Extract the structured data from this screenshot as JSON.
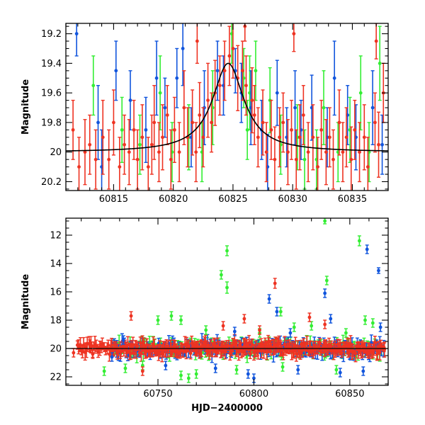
{
  "colors": {
    "green": "#33ee33",
    "blue": "#1155dd",
    "red": "#ee3322",
    "model": "#000000"
  },
  "chart_data": [
    {
      "type": "scatter",
      "panel": "top",
      "xlabel": "",
      "ylabel": "Magnitude",
      "xlim": [
        60811,
        60838
      ],
      "ylim": [
        20.26,
        19.13
      ],
      "y_inverted": true,
      "xticks": [
        60815,
        60820,
        60825,
        60830,
        60835
      ],
      "xtick_labels": [
        "60815",
        "60820",
        "60825",
        "60830",
        "60835"
      ],
      "yticks": [
        19.2,
        19.4,
        19.6,
        19.8,
        20.0,
        20.2
      ],
      "ytick_labels": [
        "19.2",
        "19.4",
        "19.6",
        "19.8",
        "20",
        "20.2"
      ],
      "model_curve": {
        "baseline": 20.0,
        "peak_x": 60824.6,
        "peak_y": 19.4,
        "timescale": 1.6
      },
      "series": [
        {
          "color": "green",
          "points": [
            [
              60813.3,
              19.55,
              0.2
            ],
            [
              60815.7,
              19.85,
              0.22
            ],
            [
              60817.2,
              19.95,
              0.2
            ],
            [
              60818.9,
              19.6,
              0.25
            ],
            [
              60819.9,
              20.0,
              0.2
            ],
            [
              60821.3,
              19.9,
              0.22
            ],
            [
              60822.4,
              20.0,
              0.2
            ],
            [
              60823.3,
              19.7,
              0.25
            ],
            [
              60825.9,
              19.5,
              0.2
            ],
            [
              60826.4,
              19.6,
              0.25
            ],
            [
              60826.9,
              19.45,
              0.2
            ],
            [
              60828.1,
              19.65,
              0.22
            ],
            [
              60829.0,
              19.95,
              0.2
            ],
            [
              60830.4,
              19.9,
              0.22
            ],
            [
              60831.0,
              20.05,
              0.2
            ],
            [
              60832.6,
              19.7,
              0.25
            ],
            [
              60833.8,
              20.0,
              0.2
            ],
            [
              60834.8,
              19.85,
              0.22
            ],
            [
              60835.7,
              19.6,
              0.25
            ],
            [
              60836.4,
              20.0,
              0.2
            ],
            [
              60837.3,
              19.4,
              0.25
            ],
            [
              60824.9,
              19.2,
              0.2
            ],
            [
              60826.2,
              19.85,
              0.2
            ],
            [
              60832.0,
              20.05,
              0.2
            ]
          ]
        },
        {
          "color": "blue",
          "points": [
            [
              60811.9,
              19.2,
              0.15
            ],
            [
              60813.7,
              19.8,
              0.25
            ],
            [
              60815.2,
              19.45,
              0.2
            ],
            [
              60816.4,
              19.65,
              0.2
            ],
            [
              60817.7,
              19.85,
              0.22
            ],
            [
              60818.6,
              19.5,
              0.25
            ],
            [
              60819.3,
              19.7,
              0.2
            ],
            [
              60820.3,
              19.5,
              0.2
            ],
            [
              60821.5,
              19.9,
              0.2
            ],
            [
              60822.6,
              19.7,
              0.25
            ],
            [
              60823.7,
              19.45,
              0.2
            ],
            [
              60824.2,
              19.55,
              0.2
            ],
            [
              60825.2,
              19.45,
              0.15
            ],
            [
              60825.7,
              19.6,
              0.2
            ],
            [
              60826.5,
              19.7,
              0.25
            ],
            [
              60827.4,
              19.85,
              0.2
            ],
            [
              60828.7,
              19.6,
              0.22
            ],
            [
              60829.5,
              19.9,
              0.2
            ],
            [
              60830.2,
              19.7,
              0.25
            ],
            [
              60830.7,
              19.85,
              0.2
            ],
            [
              60831.6,
              19.7,
              0.22
            ],
            [
              60832.9,
              19.9,
              0.2
            ],
            [
              60833.5,
              19.5,
              0.25
            ],
            [
              60834.6,
              19.75,
              0.2
            ],
            [
              60835.3,
              19.9,
              0.22
            ],
            [
              60836.7,
              19.7,
              0.25
            ],
            [
              60837.5,
              19.95,
              0.2
            ],
            [
              60814.0,
              20.1,
              0.25
            ],
            [
              60820.8,
              19.3,
              0.25
            ],
            [
              60827.9,
              20.1,
              0.22
            ]
          ]
        },
        {
          "color": "red",
          "points": [
            [
              60811.6,
              19.85,
              0.2
            ],
            [
              60812.1,
              20.1,
              0.2
            ],
            [
              60812.6,
              20.0,
              0.22
            ],
            [
              60813.0,
              19.95,
              0.2
            ],
            [
              60813.5,
              20.05,
              0.2
            ],
            [
              60814.1,
              19.9,
              0.25
            ],
            [
              60814.6,
              20.05,
              0.2
            ],
            [
              60815.0,
              19.8,
              0.22
            ],
            [
              60815.5,
              20.1,
              0.2
            ],
            [
              60815.9,
              19.95,
              0.2
            ],
            [
              60816.3,
              20.0,
              0.22
            ],
            [
              60816.7,
              19.85,
              0.2
            ],
            [
              60817.0,
              20.05,
              0.2
            ],
            [
              60817.4,
              19.9,
              0.22
            ],
            [
              60817.9,
              20.1,
              0.2
            ],
            [
              60818.2,
              19.95,
              0.2
            ],
            [
              60818.4,
              19.8,
              0.25
            ],
            [
              60818.8,
              20.0,
              0.2
            ],
            [
              60819.1,
              19.9,
              0.22
            ],
            [
              60819.5,
              19.75,
              0.2
            ],
            [
              60819.8,
              20.05,
              0.2
            ],
            [
              60820.1,
              19.85,
              0.22
            ],
            [
              60820.5,
              20.0,
              0.2
            ],
            [
              60820.9,
              19.7,
              0.25
            ],
            [
              60821.2,
              19.9,
              0.2
            ],
            [
              60821.6,
              19.8,
              0.22
            ],
            [
              60821.9,
              20.0,
              0.2
            ],
            [
              60822.2,
              19.75,
              0.22
            ],
            [
              60822.5,
              19.9,
              0.2
            ],
            [
              60822.9,
              19.65,
              0.25
            ],
            [
              60823.2,
              19.8,
              0.2
            ],
            [
              60823.5,
              19.6,
              0.22
            ],
            [
              60823.9,
              19.55,
              0.2
            ],
            [
              60824.3,
              19.45,
              0.2
            ],
            [
              60824.7,
              19.35,
              0.2
            ],
            [
              60825.0,
              19.3,
              0.2
            ],
            [
              60825.4,
              19.5,
              0.22
            ],
            [
              60825.8,
              19.45,
              0.2
            ],
            [
              60826.1,
              19.55,
              0.2
            ],
            [
              60826.6,
              19.65,
              0.22
            ],
            [
              60826.8,
              19.75,
              0.2
            ],
            [
              60827.1,
              19.9,
              0.2
            ],
            [
              60827.5,
              19.8,
              0.22
            ],
            [
              60827.8,
              20.0,
              0.2
            ],
            [
              60828.2,
              19.85,
              0.2
            ],
            [
              60828.5,
              20.05,
              0.22
            ],
            [
              60828.9,
              19.9,
              0.2
            ],
            [
              60829.2,
              19.8,
              0.2
            ],
            [
              60829.6,
              20.0,
              0.22
            ],
            [
              60829.9,
              19.85,
              0.2
            ],
            [
              60830.3,
              20.05,
              0.2
            ],
            [
              60830.6,
              19.9,
              0.22
            ],
            [
              60830.9,
              19.75,
              0.2
            ],
            [
              60831.3,
              20.0,
              0.2
            ],
            [
              60831.7,
              19.9,
              0.22
            ],
            [
              60832.1,
              20.1,
              0.2
            ],
            [
              60832.4,
              19.85,
              0.2
            ],
            [
              60832.8,
              20.0,
              0.22
            ],
            [
              60833.1,
              19.9,
              0.2
            ],
            [
              60833.4,
              20.05,
              0.2
            ],
            [
              60833.9,
              19.8,
              0.22
            ],
            [
              60834.2,
              20.0,
              0.2
            ],
            [
              60834.5,
              19.9,
              0.2
            ],
            [
              60834.9,
              20.05,
              0.22
            ],
            [
              60835.2,
              19.85,
              0.2
            ],
            [
              60835.6,
              20.0,
              0.2
            ],
            [
              60836.0,
              19.9,
              0.22
            ],
            [
              60836.3,
              20.1,
              0.2
            ],
            [
              60836.9,
              19.8,
              0.2
            ],
            [
              60837.2,
              19.95,
              0.22
            ],
            [
              60837.6,
              19.6,
              0.2
            ],
            [
              60837.0,
              19.25,
              0.12
            ],
            [
              60826.0,
              19.15,
              0.1
            ],
            [
              60830.1,
              19.2,
              0.12
            ],
            [
              60822.0,
              19.25,
              0.15
            ]
          ]
        }
      ]
    },
    {
      "type": "scatter",
      "panel": "bottom",
      "xlabel": "HJD−2400000",
      "ylabel": "Magnitude",
      "xlim": [
        60702,
        60870
      ],
      "ylim": [
        22.6,
        10.8
      ],
      "y_inverted": true,
      "xticks": [
        60750,
        60800,
        60850
      ],
      "xtick_labels": [
        "60750",
        "60800",
        "60850"
      ],
      "yticks": [
        12,
        14,
        16,
        18,
        20,
        22
      ],
      "ytick_labels": [
        "12",
        "14",
        "16",
        "18",
        "20",
        "22"
      ],
      "baseline": 20.0,
      "band": {
        "x_start": 60708,
        "x_end": 60868,
        "noise": 0.35,
        "step": 0.55
      },
      "series": [
        {
          "color": "green",
          "points": [
            [
              60837,
              11.0,
              0.2
            ],
            [
              60786,
              13.1,
              0.35
            ],
            [
              60786,
              15.7,
              0.4
            ],
            [
              60783,
              14.8,
              0.3
            ],
            [
              60838,
              15.2,
              0.3
            ],
            [
              60855,
              12.4,
              0.35
            ],
            [
              60858,
              18.0,
              0.3
            ],
            [
              60830,
              18.4,
              0.3
            ],
            [
              60762,
              18.0,
              0.3
            ],
            [
              60757,
              17.7,
              0.3
            ],
            [
              60750,
              18.0,
              0.3
            ],
            [
              60733,
              21.4,
              0.3
            ],
            [
              60722,
              21.6,
              0.3
            ],
            [
              60762,
              21.9,
              0.3
            ],
            [
              60766,
              22.1,
              0.3
            ],
            [
              60770,
              21.8,
              0.3
            ],
            [
              60775,
              18.7,
              0.3
            ],
            [
              60791,
              21.5,
              0.3
            ],
            [
              60803,
              18.9,
              0.3
            ],
            [
              60814,
              17.4,
              0.3
            ],
            [
              60821,
              18.5,
              0.3
            ],
            [
              60843,
              21.5,
              0.3
            ],
            [
              60848,
              18.9,
              0.3
            ],
            [
              60862,
              18.2,
              0.3
            ],
            [
              60815,
              21.3,
              0.3
            ],
            [
              60742,
              21.2,
              0.3
            ]
          ]
        },
        {
          "color": "blue",
          "points": [
            [
              60859,
              13.0,
              0.3
            ],
            [
              60865,
              14.5,
              0.2
            ],
            [
              60837,
              16.1,
              0.3
            ],
            [
              60808,
              16.5,
              0.3
            ],
            [
              60812,
              17.4,
              0.3
            ],
            [
              60840,
              17.9,
              0.3
            ],
            [
              60797,
              21.8,
              0.3
            ],
            [
              60800,
              22.1,
              0.3
            ],
            [
              60845,
              21.7,
              0.3
            ],
            [
              60857,
              21.6,
              0.3
            ],
            [
              60866,
              18.5,
              0.3
            ],
            [
              60780,
              21.4,
              0.3
            ],
            [
              60754,
              21.2,
              0.3
            ],
            [
              60732,
              19.4,
              0.3
            ],
            [
              60726,
              20.6,
              0.3
            ],
            [
              60790,
              18.8,
              0.3
            ],
            [
              60823,
              21.5,
              0.3
            ],
            [
              60819,
              18.9,
              0.3
            ]
          ]
        },
        {
          "color": "red",
          "points": [
            [
              60811,
              15.4,
              0.35
            ],
            [
              60736,
              17.7,
              0.3
            ],
            [
              60784,
              18.4,
              0.3
            ],
            [
              60837,
              18.3,
              0.3
            ],
            [
              60829,
              17.8,
              0.3
            ],
            [
              60795,
              17.9,
              0.3
            ],
            [
              60742,
              21.6,
              0.3
            ],
            [
              60803,
              18.7,
              0.3
            ],
            [
              60706,
              20.3,
              0.3
            ],
            [
              60712,
              19.9,
              0.3
            ],
            [
              60716,
              20.4,
              0.3
            ],
            [
              60720,
              19.8,
              0.3
            ],
            [
              60725,
              20.1,
              0.3
            ]
          ]
        }
      ]
    }
  ]
}
